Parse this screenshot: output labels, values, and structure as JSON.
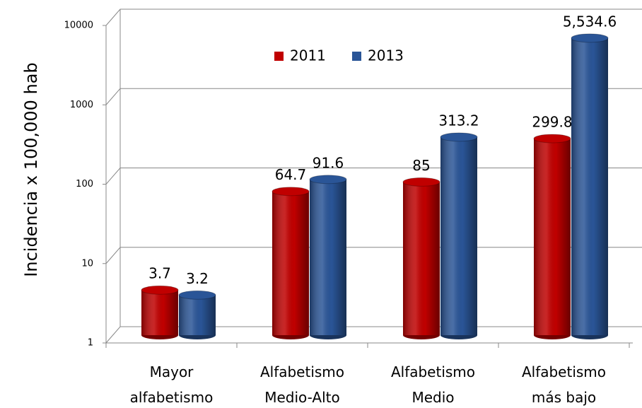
{
  "chart_data": {
    "type": "bar",
    "y_label": "Incidencia x 100,000 hab",
    "categories": [
      "Mayor\nalfabetismo",
      "Alfabetismo\nMedio-Alto",
      "Alfabetismo\nMedio",
      "Alfabetismo\nmás bajo"
    ],
    "series": [
      {
        "name": "2011",
        "color": "#c00000",
        "values": [
          3.7,
          64.7,
          85,
          299.8
        ]
      },
      {
        "name": "2013",
        "color": "#2a5597",
        "values": [
          3.2,
          91.6,
          313.2,
          5534.6
        ],
        "value_labels": [
          "3.2",
          "91.6",
          "313.2",
          "5,534.6"
        ]
      }
    ],
    "ylim": [
      1,
      10000
    ],
    "yticks": [
      1,
      10,
      100,
      1000,
      10000
    ],
    "log_scale": true,
    "grid": true,
    "legend": "top"
  }
}
